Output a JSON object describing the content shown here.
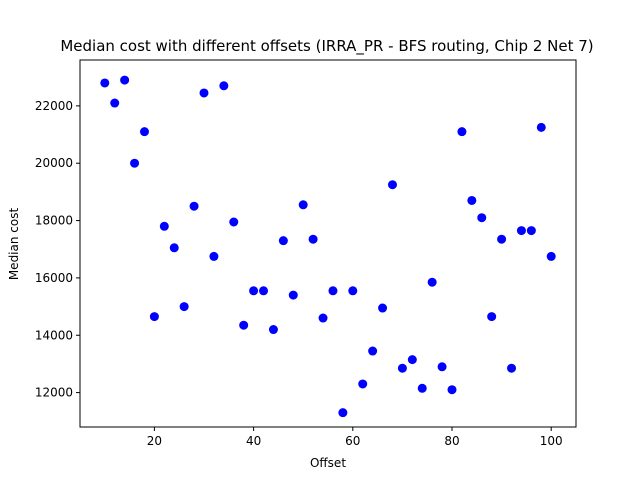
{
  "chart_data": {
    "type": "scatter",
    "title": "Median cost with different offsets (IRRA_PR - BFS routing, Chip 2 Net 7)",
    "xlabel": "Offset",
    "ylabel": "Median cost",
    "xlim": [
      5,
      105
    ],
    "ylim": [
      10800,
      23600
    ],
    "xticks": [
      20,
      40,
      60,
      80,
      100
    ],
    "yticks": [
      12000,
      14000,
      16000,
      18000,
      20000,
      22000
    ],
    "grid": false,
    "marker_color": "#0000ff",
    "x": [
      10,
      12,
      14,
      16,
      18,
      20,
      22,
      24,
      26,
      28,
      30,
      32,
      34,
      36,
      38,
      40,
      42,
      44,
      46,
      48,
      50,
      52,
      54,
      56,
      58,
      60,
      62,
      64,
      66,
      68,
      70,
      72,
      74,
      76,
      78,
      80,
      82,
      84,
      86,
      88,
      90,
      92,
      94,
      96,
      98,
      100
    ],
    "y": [
      22800,
      22100,
      22900,
      20000,
      21100,
      14650,
      17800,
      17050,
      15000,
      18500,
      22450,
      16750,
      22700,
      17950,
      14350,
      15550,
      15550,
      14200,
      17300,
      15400,
      18550,
      17350,
      14600,
      15550,
      11300,
      15550,
      12300,
      13450,
      14950,
      19250,
      12850,
      13150,
      12150,
      15850,
      12900,
      12100,
      21100,
      18700,
      18100,
      14650,
      17350,
      12850,
      17650,
      17650,
      21250,
      16750
    ]
  }
}
